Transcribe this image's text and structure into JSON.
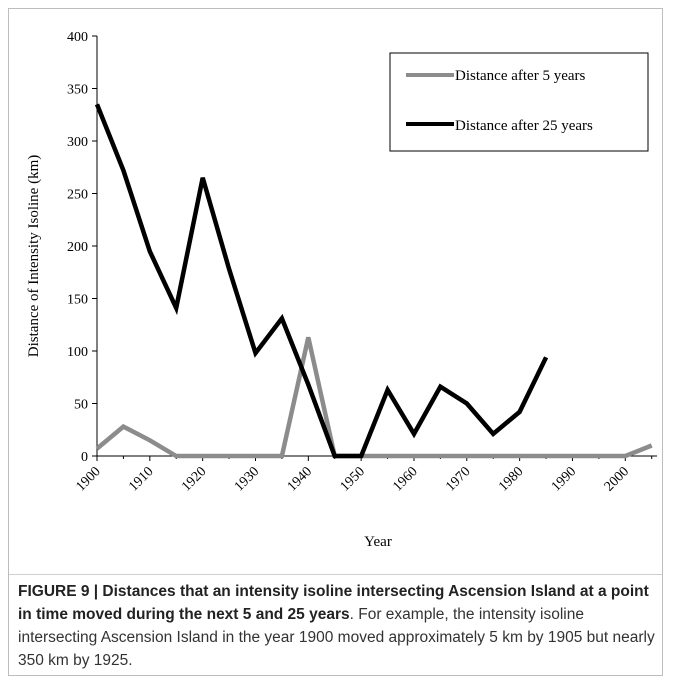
{
  "chart_data": {
    "type": "line",
    "xlabel": "Year",
    "ylabel": "Distance of Intensity Isoline (km)",
    "x_ticks": [
      "1900",
      "1910",
      "1920",
      "1930",
      "1940",
      "1950",
      "1960",
      "1970",
      "1980",
      "1990",
      "2000"
    ],
    "y_ticks": [
      "0",
      "50",
      "100",
      "150",
      "200",
      "250",
      "300",
      "350",
      "400"
    ],
    "xlim": [
      1900,
      2006
    ],
    "ylim": [
      0,
      400
    ],
    "legend_position": "top-right",
    "grid": false,
    "series": [
      {
        "name": "Distance after 5 years",
        "color": "#8c8c8c",
        "points": [
          [
            1900,
            7
          ],
          [
            1905,
            28
          ],
          [
            1910,
            15
          ],
          [
            1915,
            0
          ],
          [
            1920,
            0
          ],
          [
            1925,
            0
          ],
          [
            1930,
            0
          ],
          [
            1935,
            0
          ],
          [
            1940,
            113
          ],
          [
            1945,
            0
          ],
          [
            1950,
            0
          ],
          [
            1955,
            0
          ],
          [
            1960,
            0
          ],
          [
            1965,
            0
          ],
          [
            1970,
            0
          ],
          [
            1975,
            0
          ],
          [
            1980,
            0
          ],
          [
            1985,
            0
          ],
          [
            1990,
            0
          ],
          [
            1995,
            0
          ],
          [
            2000,
            0
          ],
          [
            2005,
            10
          ]
        ]
      },
      {
        "name": "Distance after 25 years",
        "color": "#000000",
        "points": [
          [
            1900,
            335
          ],
          [
            1905,
            272
          ],
          [
            1910,
            195
          ],
          [
            1915,
            141
          ],
          [
            1920,
            265
          ],
          [
            1925,
            178
          ],
          [
            1930,
            98
          ],
          [
            1935,
            131
          ],
          [
            1940,
            68
          ],
          [
            1945,
            0
          ],
          [
            1950,
            0
          ],
          [
            1955,
            63
          ],
          [
            1960,
            21
          ],
          [
            1965,
            66
          ],
          [
            1970,
            50
          ],
          [
            1975,
            21
          ],
          [
            1980,
            42
          ],
          [
            1985,
            94
          ]
        ]
      }
    ]
  },
  "caption": {
    "bold": "FIGURE 9 | Distances that an intensity isoline intersecting Ascension Island at a point in time moved during the next 5 and 25 years",
    "rest": ". For example, the intensity isoline intersecting Ascension Island in the year 1900 moved approximately 5 km by 1905 but nearly 350 km by 1925."
  }
}
